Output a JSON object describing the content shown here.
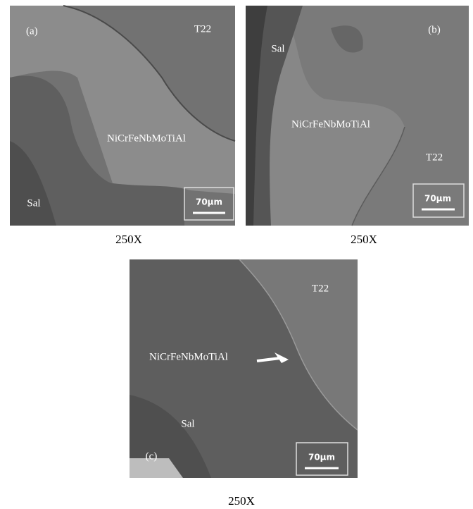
{
  "panels": [
    {
      "label": "(a)",
      "t22": "T22",
      "coating": "NiCrFeNbMoTiAl",
      "sal": "Sal",
      "scale_bar": "70μm",
      "magnification": "250X"
    },
    {
      "label": "(b)",
      "t22": "T22",
      "coating": "NiCrFeNbMoTiAl",
      "sal": "Sal",
      "scale_bar": "70μm",
      "magnification": "250X"
    },
    {
      "label": "(c)",
      "t22": "T22",
      "coating": "NiCrFeNbMoTiAl",
      "sal": "Sal",
      "scale_bar": "70μm",
      "magnification": "250X"
    }
  ]
}
